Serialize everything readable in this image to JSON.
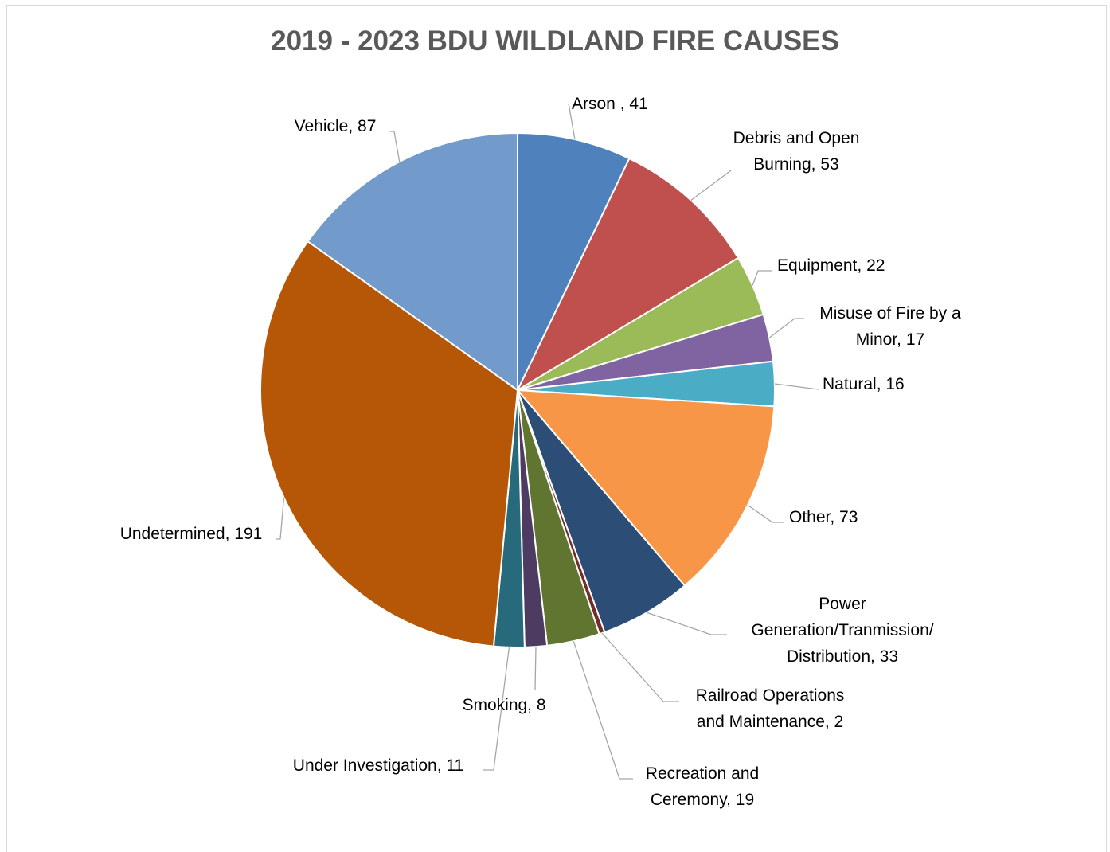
{
  "chart_data": {
    "type": "pie",
    "title": "2019 - 2023 BDU WILDLAND FIRE CAUSES",
    "slices": [
      {
        "category": "Arson",
        "value": 41,
        "label_lines": [
          "Arson , 41"
        ],
        "color": "#4F81BD"
      },
      {
        "category": "Debris and Open Burning",
        "value": 53,
        "label_lines": [
          "Debris and Open",
          "Burning, 53"
        ],
        "color": "#C0504D"
      },
      {
        "category": "Equipment",
        "value": 22,
        "label_lines": [
          "Equipment, 22"
        ],
        "color": "#9BBB59"
      },
      {
        "category": "Misuse of Fire by a Minor",
        "value": 17,
        "label_lines": [
          "Misuse of Fire by a",
          "Minor, 17"
        ],
        "color": "#8064A2"
      },
      {
        "category": "Natural",
        "value": 16,
        "label_lines": [
          "Natural, 16"
        ],
        "color": "#4BACC6"
      },
      {
        "category": "Other",
        "value": 73,
        "label_lines": [
          "Other, 73"
        ],
        "color": "#F79646"
      },
      {
        "category": "Power Generation/Tranmission/ Distribution",
        "value": 33,
        "label_lines": [
          "Power",
          "Generation/Tranmission/",
          "Distribution, 33"
        ],
        "color": "#2C4D75"
      },
      {
        "category": "Railroad Operations and Maintenance",
        "value": 2,
        "label_lines": [
          "Railroad Operations",
          "and Maintenance, 2"
        ],
        "color": "#772C2A"
      },
      {
        "category": "Recreation and Ceremony",
        "value": 19,
        "label_lines": [
          "Recreation and",
          "Ceremony, 19"
        ],
        "color": "#5F7530"
      },
      {
        "category": "Smoking",
        "value": 8,
        "label_lines": [
          "Smoking, 8"
        ],
        "color": "#4D3B62"
      },
      {
        "category": "Under Investigation",
        "value": 11,
        "label_lines": [
          "Under Investigation, 11"
        ],
        "color": "#276A7C"
      },
      {
        "category": "Undetermined",
        "value": 191,
        "label_lines": [
          "Undetermined, 191"
        ],
        "color": "#B65708"
      },
      {
        "category": "Vehicle",
        "value": 87,
        "label_lines": [
          "Vehicle, 87"
        ],
        "color": "#729ACA"
      }
    ],
    "legend": "none"
  }
}
